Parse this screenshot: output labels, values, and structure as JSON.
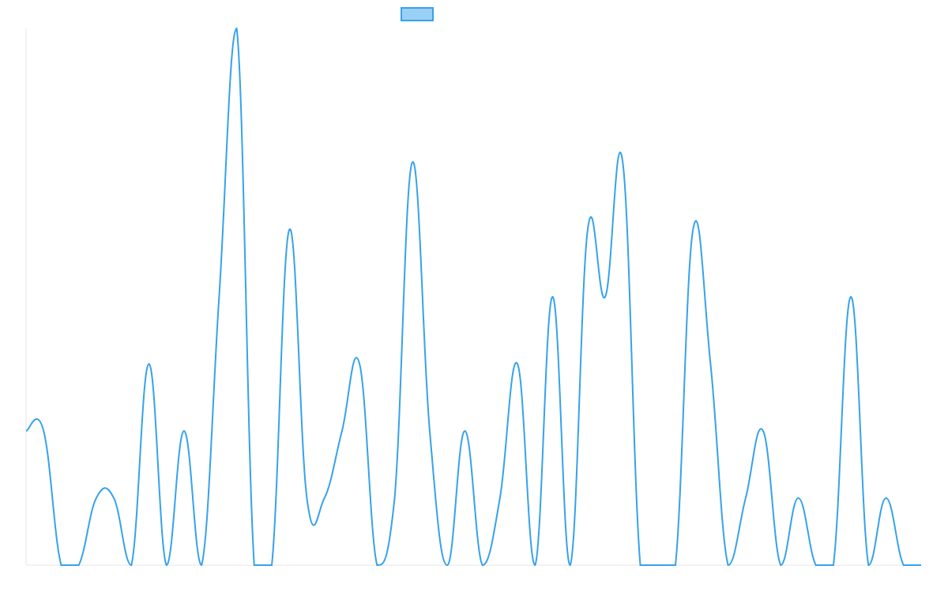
{
  "chart_data": {
    "type": "line",
    "categories": [
      null,
      null,
      null,
      null,
      null,
      null,
      null,
      null,
      null,
      null,
      null,
      null,
      null,
      null,
      null,
      null,
      null,
      null,
      null,
      null,
      null,
      null,
      null,
      null,
      null,
      null,
      null,
      null,
      null,
      null,
      null,
      null,
      null,
      null,
      null,
      null,
      null,
      null,
      null,
      null,
      null,
      null,
      null,
      null,
      null,
      null,
      null,
      null,
      null,
      null,
      null,
      null
    ],
    "series": [
      {
        "color": "#36a2eb",
        "values": [
          2,
          2,
          0,
          0,
          1,
          1,
          0,
          3,
          0,
          2,
          0,
          4,
          8,
          0,
          0,
          5,
          1,
          1,
          2,
          3,
          0,
          1,
          6,
          2,
          0,
          2,
          0,
          1,
          3,
          0,
          4,
          0,
          5,
          4,
          6,
          0,
          0,
          0,
          5,
          3,
          0,
          1,
          2,
          0,
          1,
          0,
          0,
          4,
          0,
          1,
          0,
          0
        ]
      }
    ],
    "ylim": [
      0,
      8
    ]
  }
}
